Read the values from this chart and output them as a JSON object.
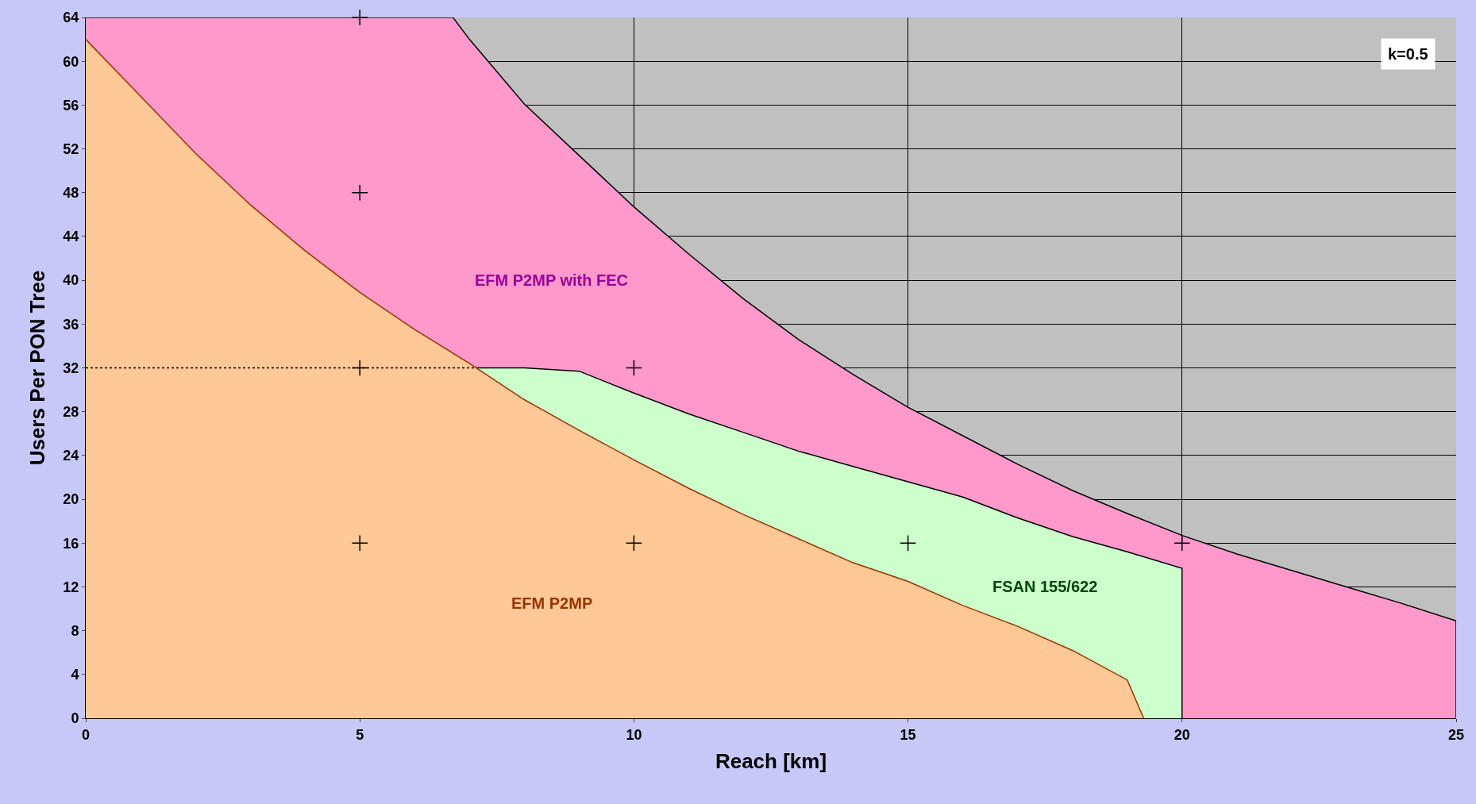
{
  "chart_data": {
    "type": "area",
    "xlabel": "Reach [km]",
    "ylabel": "Users Per PON Tree",
    "xlim": [
      0,
      25
    ],
    "ylim": [
      0,
      64
    ],
    "xticks": [
      0,
      5,
      10,
      15,
      20,
      25
    ],
    "yticks": [
      0,
      4,
      8,
      12,
      16,
      20,
      24,
      28,
      32,
      36,
      40,
      44,
      48,
      52,
      56,
      60,
      64
    ],
    "grid": true,
    "series": [
      {
        "name": null,
        "color": "#ff99cc",
        "x": [
          0,
          6.7,
          7,
          8,
          9,
          10,
          11,
          12,
          13,
          14,
          15,
          16,
          17,
          18,
          19,
          20,
          21,
          22,
          23,
          24,
          25,
          25
        ],
        "values": [
          64,
          64,
          62,
          56.1,
          51.4,
          46.7,
          42.4,
          38.3,
          34.6,
          31.4,
          28.4,
          25.8,
          23.2,
          20.8,
          18.7,
          16.7,
          15,
          13.5,
          12,
          10.5,
          8.9,
          0
        ]
      },
      {
        "name": null,
        "color": "#ccffcc",
        "x": [
          7.1,
          8,
          9,
          10,
          11,
          12,
          13,
          14,
          15,
          16,
          17,
          18,
          19,
          20,
          20
        ],
        "values": [
          32,
          32,
          31.7,
          29.7,
          27.8,
          26.1,
          24.4,
          23,
          21.6,
          20.2,
          18.3,
          16.6,
          15.2,
          13.7,
          0
        ]
      },
      {
        "name": null,
        "color": "#ffc896",
        "x": [
          0,
          1,
          2,
          3,
          4,
          5,
          6,
          7,
          8,
          9,
          10,
          11,
          12,
          13,
          14,
          15,
          16,
          17,
          18,
          19,
          19.3
        ],
        "values": [
          62,
          56.8,
          51.6,
          46.9,
          42.7,
          38.9,
          35.5,
          32.4,
          29.1,
          26.3,
          23.6,
          21,
          18.6,
          16.4,
          14.2,
          12.5,
          10.3,
          8.4,
          6.2,
          3.5,
          0
        ]
      },
      {
        "type": "line",
        "name": null,
        "color": "#000000",
        "line_style": "dotted",
        "marker": "none",
        "x": [
          0,
          7.1
        ],
        "values": [
          32,
          32
        ]
      },
      {
        "type": "scatter",
        "name": null,
        "color": "#000000",
        "marker": "cross",
        "x": [
          5,
          5,
          5,
          10,
          5,
          10,
          15,
          20
        ],
        "values": [
          64,
          48,
          32,
          32,
          16,
          16,
          16,
          16
        ]
      }
    ],
    "annotations": [
      "EFM P2MP with FEC",
      "FSAN 155/622",
      "EFM P2MP",
      "k=0.5"
    ]
  }
}
